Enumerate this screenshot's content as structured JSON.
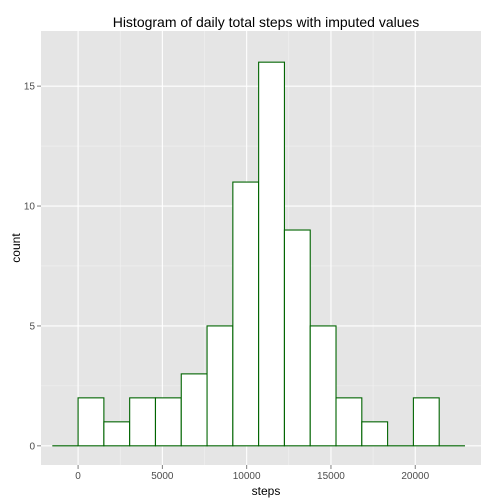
{
  "chart_data": {
    "type": "bar",
    "title": "Histogram of daily total steps with imputed values",
    "xlabel": "steps",
    "ylabel": "count",
    "xlim": [
      -2200,
      23900
    ],
    "ylim": [
      -0.8,
      17.3
    ],
    "x_ticks": [
      0,
      5000,
      10000,
      15000,
      20000
    ],
    "x_tick_labels": [
      "0",
      "5000",
      "10000",
      "15000",
      "20000"
    ],
    "y_ticks": [
      0,
      5,
      10,
      15
    ],
    "y_tick_labels": [
      "0",
      "5",
      "10",
      "15"
    ],
    "bin_width": 1530,
    "bins": [
      {
        "start": -1530,
        "end": 0,
        "count": 0
      },
      {
        "start": 0,
        "end": 1530,
        "count": 2
      },
      {
        "start": 1530,
        "end": 3060,
        "count": 1
      },
      {
        "start": 3060,
        "end": 4590,
        "count": 2
      },
      {
        "start": 4590,
        "end": 6120,
        "count": 2
      },
      {
        "start": 6120,
        "end": 7650,
        "count": 3
      },
      {
        "start": 7650,
        "end": 9180,
        "count": 5
      },
      {
        "start": 9180,
        "end": 10710,
        "count": 11
      },
      {
        "start": 10710,
        "end": 12240,
        "count": 16
      },
      {
        "start": 12240,
        "end": 13770,
        "count": 9
      },
      {
        "start": 13770,
        "end": 15300,
        "count": 5
      },
      {
        "start": 15300,
        "end": 16830,
        "count": 2
      },
      {
        "start": 16830,
        "end": 18360,
        "count": 1
      },
      {
        "start": 18360,
        "end": 19890,
        "count": 0
      },
      {
        "start": 19890,
        "end": 21420,
        "count": 2
      },
      {
        "start": 21420,
        "end": 22950,
        "count": 0
      }
    ],
    "grid": true,
    "panel_background": "#e5e5e5",
    "grid_color": "#f2f2f2",
    "bar_fill": "#ffffff",
    "bar_outline": "#006400"
  }
}
